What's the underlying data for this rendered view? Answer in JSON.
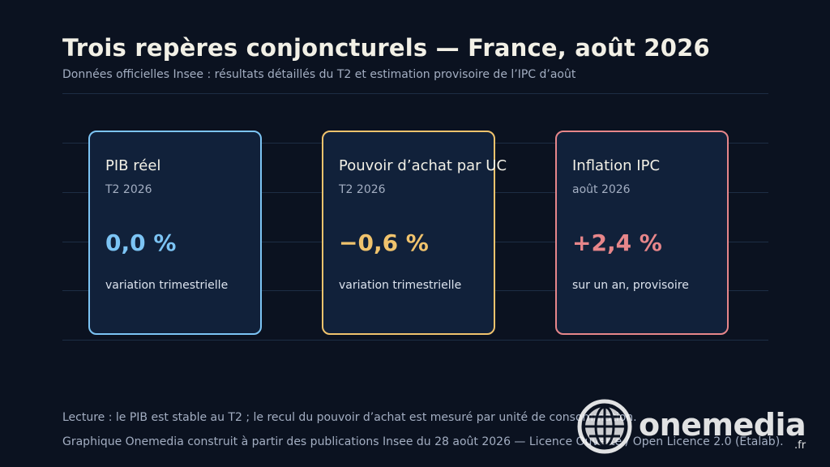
{
  "header": {
    "title": "Trois repères conjoncturels — France, août 2026",
    "subtitle": "Données officielles Insee : résultats détaillés du T2 et estimation provisoire de l’IPC d’août"
  },
  "chart_data": {
    "type": "table",
    "title": "Trois repères conjoncturels — France, août 2026",
    "subtitle": "Données officielles Insee : résultats détaillés du T2 et estimation provisoire de l’IPC d’août",
    "cards": [
      {
        "label": "PIB réel",
        "period": "T2 2026",
        "value": 0.0,
        "value_text": "0,0 %",
        "note": "variation trimestrielle",
        "color": "#7cc4f4"
      },
      {
        "label": "Pouvoir d’achat par UC",
        "period": "T2 2026",
        "value": -0.6,
        "value_text": "−0,6 %",
        "note": "variation trimestrielle",
        "color": "#f0c36d"
      },
      {
        "label": "Inflation IPC",
        "period": "août 2026",
        "value": 2.4,
        "value_text": "+2,4 %",
        "note": "sur un an, provisoire",
        "color": "#e7868a"
      }
    ]
  },
  "footer": {
    "reading": "Lecture : le PIB est stable au T2 ; le recul du pouvoir d’achat est mesuré par unité de consommation.",
    "source": "Graphique Onemedia construit à partir des publications Insee du 28 août 2026 — Licence Ouverte / Open Licence 2.0 (Etalab)."
  },
  "logo": {
    "word": "onemedia",
    "tld": ".fr",
    "icon": "globe-icon"
  }
}
